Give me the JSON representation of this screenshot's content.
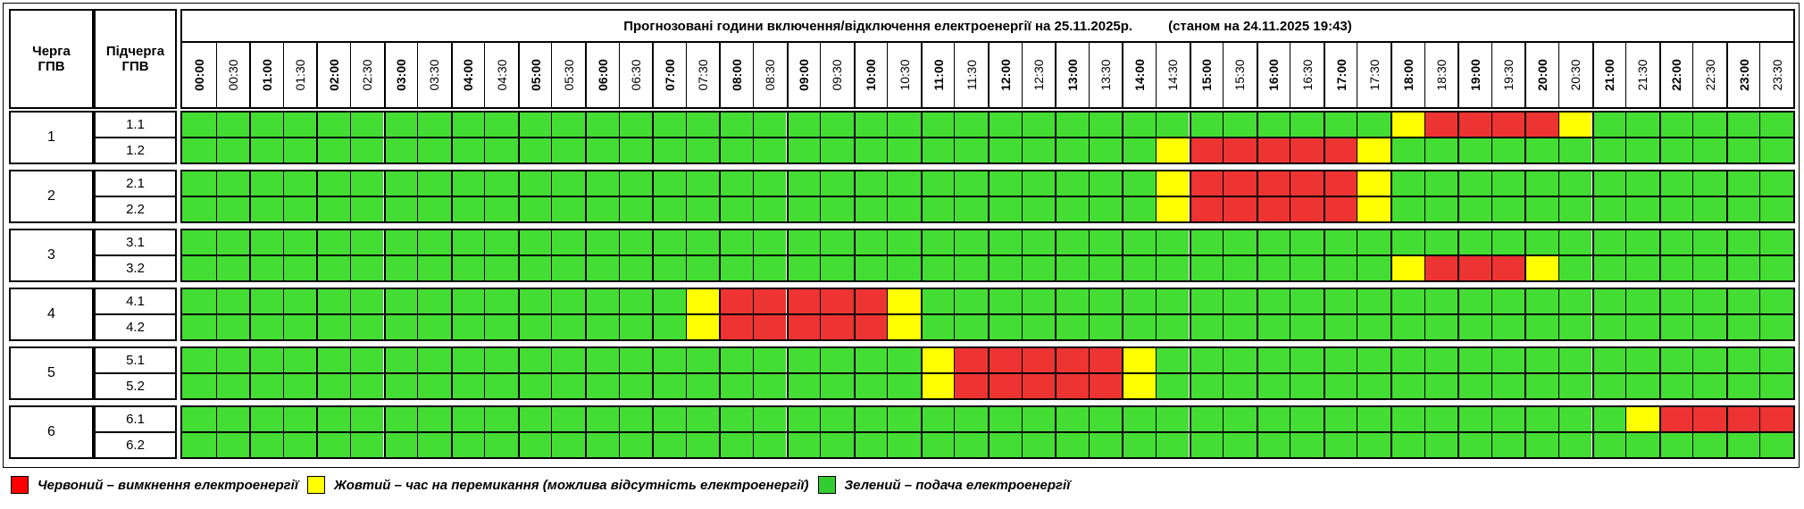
{
  "header": {
    "queue_label": "Черга ГПВ",
    "subqueue_label": "Підчерга ГПВ",
    "title": "Прогнозовані години включення/відключення електроенергії на 25.11.2025р.",
    "as_of": "(станом на 24.11.2025 19:43)"
  },
  "colors": {
    "red": "#ee3333",
    "yellow": "#ffff00",
    "green": "#44dd33"
  },
  "times": [
    "00:00",
    "00:30",
    "01:00",
    "01:30",
    "02:00",
    "02:30",
    "03:00",
    "03:30",
    "04:00",
    "04:30",
    "05:00",
    "05:30",
    "06:00",
    "06:30",
    "07:00",
    "07:30",
    "08:00",
    "08:30",
    "09:00",
    "09:30",
    "10:00",
    "10:30",
    "11:00",
    "11:30",
    "12:00",
    "12:30",
    "13:00",
    "13:30",
    "14:00",
    "14:30",
    "15:00",
    "15:30",
    "16:00",
    "16:30",
    "17:00",
    "17:30",
    "18:00",
    "18:30",
    "19:00",
    "19:30",
    "20:00",
    "20:30",
    "21:00",
    "21:30",
    "22:00",
    "22:30",
    "23:00",
    "23:30"
  ],
  "groups": [
    {
      "queue": "1",
      "rows": [
        {
          "sub": "1.1",
          "slots": "GGGGGGGGGGGGGGGGGGGGGGGGGGGGGGGGGGGGYRRRRYGGGGGG"
        },
        {
          "sub": "1.2",
          "slots": "GGGGGGGGGGGGGGGGGGGGGGGGGGGGGYRRRRRYGGGGGGGGGGGG"
        }
      ]
    },
    {
      "queue": "2",
      "rows": [
        {
          "sub": "2.1",
          "slots": "GGGGGGGGGGGGGGGGGGGGGGGGGGGGGYRRRRRYGGGGGGGGGGGG"
        },
        {
          "sub": "2.2",
          "slots": "GGGGGGGGGGGGGGGGGGGGGGGGGGGGGYRRRRRYGGGGGGGGGGGG"
        }
      ]
    },
    {
      "queue": "3",
      "rows": [
        {
          "sub": "3.1",
          "slots": "GGGGGGGGGGGGGGGGGGGGGGGGGGGGGGGGGGGGGGGGGGGGGGGG"
        },
        {
          "sub": "3.2",
          "slots": "GGGGGGGGGGGGGGGGGGGGGGGGGGGGGGGGGGGGYRRRYGGGGGGG"
        }
      ]
    },
    {
      "queue": "4",
      "rows": [
        {
          "sub": "4.1",
          "slots": "GGGGGGGGGGGGGGGYRRRRRYGGGGGGGGGGGGGGGGGGGGGGGGGG"
        },
        {
          "sub": "4.2",
          "slots": "GGGGGGGGGGGGGGGYRRRRRYGGGGGGGGGGGGGGGGGGGGGGGGGG"
        }
      ]
    },
    {
      "queue": "5",
      "rows": [
        {
          "sub": "5.1",
          "slots": "GGGGGGGGGGGGGGGGGGGGGGYRRRRRYGGGGGGGGGGGGGGGGGGG"
        },
        {
          "sub": "5.2",
          "slots": "GGGGGGGGGGGGGGGGGGGGGGYRRRRRYGGGGGGGGGGGGGGGGGGG"
        }
      ]
    },
    {
      "queue": "6",
      "rows": [
        {
          "sub": "6.1",
          "slots": "GGGGGGGGGGGGGGGGGGGGGGGGGGGGGGGGGGGGGGGGGGGYRRRR"
        },
        {
          "sub": "6.2",
          "slots": "GGGGGGGGGGGGGGGGGGGGGGGGGGGGGGGGGGGGGGGGGGGGGGGG"
        }
      ]
    }
  ],
  "legend": [
    {
      "color": "#ff0000",
      "text": "Червоний – вимкнення електроенергії"
    },
    {
      "color": "#ffff00",
      "text": "Жовтий – час на перемикання (можлива відсутність електроенергії)"
    },
    {
      "color": "#33cc33",
      "text": "Зелений – подача електроенергії"
    }
  ]
}
